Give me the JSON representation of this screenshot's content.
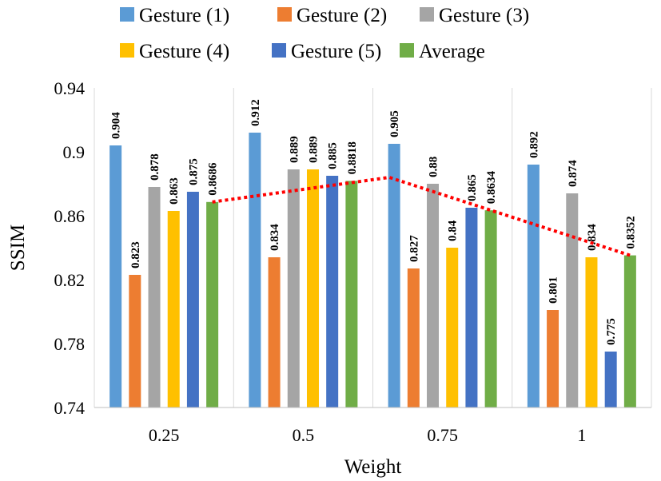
{
  "chart_data": {
    "type": "bar",
    "xlabel": "Weight",
    "ylabel": "SSIM",
    "categories": [
      "0.25",
      "0.5",
      "0.75",
      "1"
    ],
    "ylim": [
      0.74,
      0.94
    ],
    "yticks": [
      "0.74",
      "0.78",
      "0.82",
      "0.86",
      "0.9",
      "0.94"
    ],
    "grid": "vertical separators between categories",
    "legend_position": "top",
    "series": [
      {
        "name": "Gesture (1)",
        "color": "#5B9BD5",
        "values": [
          0.904,
          0.912,
          0.905,
          0.892
        ],
        "labels": [
          "0.904",
          "0.912",
          "0.905",
          "0.892"
        ]
      },
      {
        "name": "Gesture (2)",
        "color": "#ED7D31",
        "values": [
          0.823,
          0.834,
          0.827,
          0.801
        ],
        "labels": [
          "0.823",
          "0.834",
          "0.827",
          "0.801"
        ]
      },
      {
        "name": "Gesture (3)",
        "color": "#A5A5A5",
        "values": [
          0.878,
          0.889,
          0.88,
          0.874
        ],
        "labels": [
          "0.878",
          "0.889",
          "0.88",
          "0.874"
        ]
      },
      {
        "name": "Gesture (4)",
        "color": "#FFC000",
        "values": [
          0.863,
          0.889,
          0.84,
          0.834
        ],
        "labels": [
          "0.863",
          "0.889",
          "0.84",
          "0.834"
        ]
      },
      {
        "name": "Gesture (5)",
        "color": "#4472C4",
        "values": [
          0.875,
          0.885,
          0.865,
          0.775
        ],
        "labels": [
          "0.875",
          "0.885",
          "0.865",
          "0.775"
        ]
      },
      {
        "name": "Average",
        "color": "#70AD47",
        "values": [
          0.8686,
          0.8818,
          0.8634,
          0.8352
        ],
        "labels": [
          "0.8686",
          "0.8818",
          "0.8634",
          "0.8352"
        ]
      }
    ],
    "trend_line": {
      "color": "#FF0000",
      "style": "dotted",
      "values": [
        0.8686,
        0.8818,
        0.8634,
        0.8352
      ]
    }
  }
}
